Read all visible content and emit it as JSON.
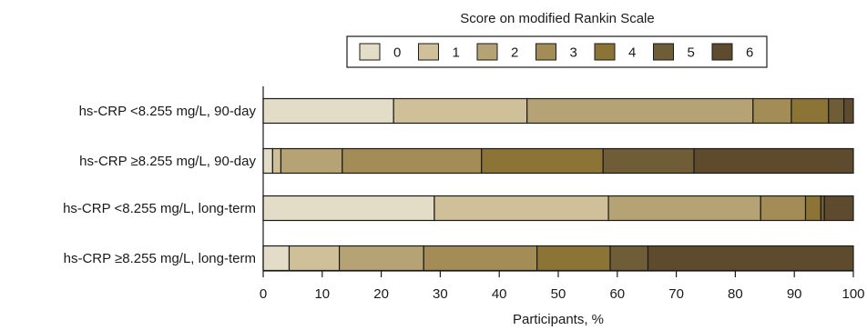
{
  "chart_data": {
    "type": "bar",
    "orientation": "horizontal",
    "stacked": true,
    "title": "",
    "xlabel": "Participants, %",
    "ylabel": "",
    "xlim": [
      0,
      100
    ],
    "x_ticks": [
      "0",
      "10",
      "20",
      "30",
      "40",
      "50",
      "60",
      "70",
      "80",
      "90",
      "100"
    ],
    "grid": false,
    "legend": {
      "title": "Score on modified Rankin Scale",
      "placement": "top-center"
    },
    "categories": [
      "hs-CRP <8.255 mg/L, 90-day",
      "hs-CRP ≥8.255 mg/L, 90-day",
      "hs-CRP <8.255 mg/L, long-term",
      "hs-CRP ≥8.255 mg/L, long-term"
    ],
    "series": [
      {
        "name": "0",
        "color": "#e3dcc6",
        "values": [
          22.1,
          1.6,
          29.0,
          4.4
        ]
      },
      {
        "name": "1",
        "color": "#d0c09a",
        "values": [
          22.6,
          1.4,
          29.5,
          8.5
        ]
      },
      {
        "name": "2",
        "color": "#b5a275",
        "values": [
          38.3,
          10.4,
          25.8,
          14.3
        ]
      },
      {
        "name": "3",
        "color": "#a38c56",
        "values": [
          6.5,
          23.6,
          7.6,
          19.2
        ]
      },
      {
        "name": "4",
        "color": "#8c7436",
        "values": [
          6.3,
          20.6,
          2.6,
          12.4
        ]
      },
      {
        "name": "5",
        "color": "#6f5d37",
        "values": [
          2.6,
          15.4,
          0.6,
          6.4
        ]
      },
      {
        "name": "6",
        "color": "#5e4b2e",
        "values": [
          1.6,
          27.0,
          4.9,
          34.8
        ]
      }
    ]
  }
}
